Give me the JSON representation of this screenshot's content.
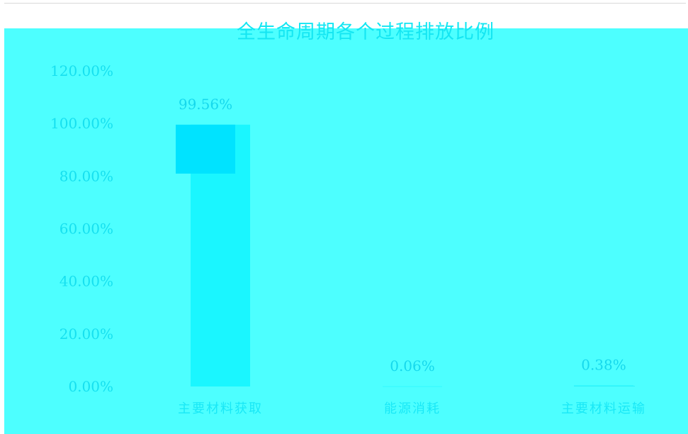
{
  "chart_data": {
    "type": "bar",
    "title": "全生命周期各个过程排放比例",
    "categories": [
      "主要材料获取",
      "能源消耗",
      "主要材料运输"
    ],
    "values": [
      99.56,
      0.06,
      0.38
    ],
    "data_labels": [
      "99.56%",
      "0.06%",
      "0.38%"
    ],
    "y_ticks": [
      "0.00%",
      "20.00%",
      "40.00%",
      "60.00%",
      "80.00%",
      "100.00%",
      "120.00%"
    ],
    "ylim": [
      0,
      120
    ],
    "grid": false,
    "legend": "none",
    "xlabel": "",
    "ylabel": "",
    "colors": {
      "background": "#4dffff",
      "bar": "#1af6ff",
      "bar_top": "#00e3ff",
      "text": "#16e0ef"
    }
  }
}
